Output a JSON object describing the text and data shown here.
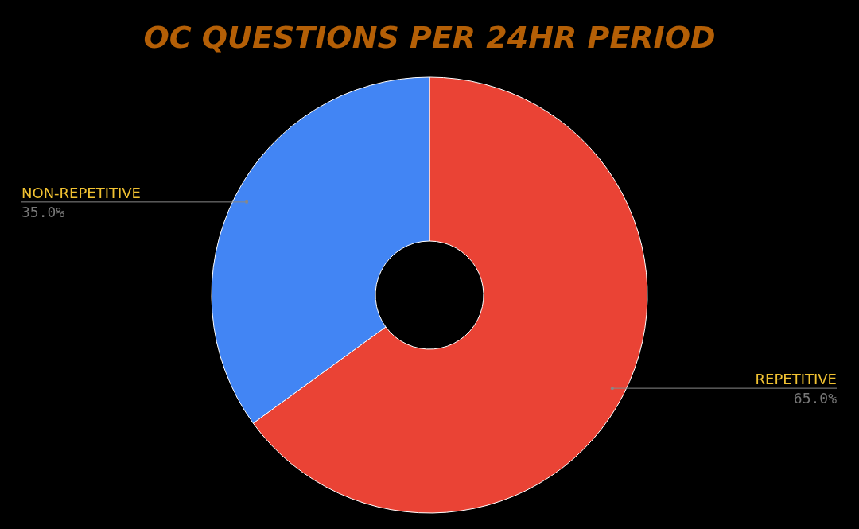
{
  "chart_data": {
    "type": "donut",
    "title": "OC QUESTIONS PER 24HR PERIOD",
    "categories": [
      "REPETITIVE",
      "NON-REPETITIVE"
    ],
    "values": [
      65,
      35
    ],
    "colors": [
      "#ea4335",
      "#4285f4"
    ],
    "value_labels": [
      "65.0%",
      "35.0%"
    ]
  }
}
